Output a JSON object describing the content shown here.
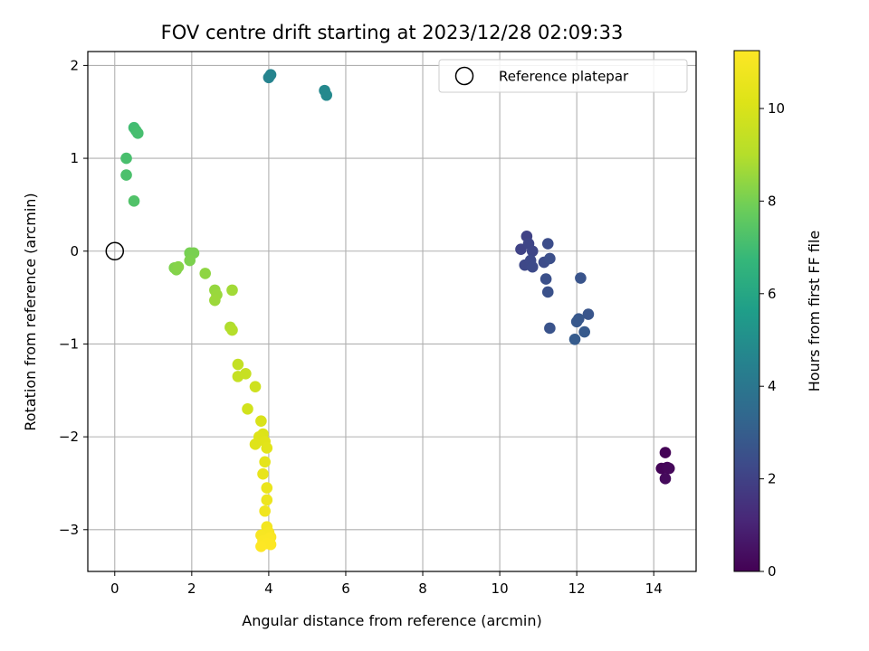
{
  "chart_data": {
    "type": "scatter",
    "title": "FOV centre drift starting at 2023/12/28 02:09:33",
    "xlabel": "Angular distance from reference (arcmin)",
    "ylabel": "Rotation from reference (arcmin)",
    "xlim": [
      -0.7,
      15.1
    ],
    "ylim": [
      -3.45,
      2.15
    ],
    "xticks": [
      "0",
      "2",
      "4",
      "6",
      "8",
      "10",
      "12",
      "14"
    ],
    "yticks": [
      "−3",
      "−2",
      "−1",
      "0",
      "1",
      "2"
    ],
    "grid": true,
    "legend": {
      "placement": "top-right",
      "entries": [
        "Reference platepar"
      ]
    },
    "reference_point": {
      "x": 0,
      "y": 0,
      "label": "Reference platepar"
    },
    "colorbar": {
      "label": "Hours from first FF file",
      "min": 0,
      "max": 11.25,
      "ticks": [
        "0",
        "2",
        "4",
        "6",
        "8",
        "10"
      ],
      "colormap": "viridis"
    },
    "points": [
      {
        "x": 14.3,
        "y": -2.17,
        "c": 0.05
      },
      {
        "x": 14.2,
        "y": -2.34,
        "c": 0.1
      },
      {
        "x": 14.35,
        "y": -2.33,
        "c": 0.15
      },
      {
        "x": 14.4,
        "y": -2.34,
        "c": 0.2
      },
      {
        "x": 14.3,
        "y": -2.45,
        "c": 0.25
      },
      {
        "x": 10.7,
        "y": 0.16,
        "c": 2.0
      },
      {
        "x": 10.55,
        "y": 0.02,
        "c": 2.05
      },
      {
        "x": 10.75,
        "y": 0.08,
        "c": 2.1
      },
      {
        "x": 10.85,
        "y": 0.0,
        "c": 2.15
      },
      {
        "x": 10.65,
        "y": -0.15,
        "c": 2.2
      },
      {
        "x": 10.8,
        "y": -0.1,
        "c": 2.25
      },
      {
        "x": 10.85,
        "y": -0.17,
        "c": 2.3
      },
      {
        "x": 11.15,
        "y": -0.12,
        "c": 2.35
      },
      {
        "x": 11.25,
        "y": 0.08,
        "c": 2.4
      },
      {
        "x": 11.3,
        "y": -0.08,
        "c": 2.45
      },
      {
        "x": 11.2,
        "y": -0.3,
        "c": 2.5
      },
      {
        "x": 11.25,
        "y": -0.44,
        "c": 2.55
      },
      {
        "x": 11.3,
        "y": -0.83,
        "c": 2.6
      },
      {
        "x": 12.1,
        "y": -0.29,
        "c": 2.65
      },
      {
        "x": 12.3,
        "y": -0.68,
        "c": 2.7
      },
      {
        "x": 12.05,
        "y": -0.73,
        "c": 2.75
      },
      {
        "x": 12.0,
        "y": -0.76,
        "c": 2.8
      },
      {
        "x": 12.2,
        "y": -0.87,
        "c": 2.85
      },
      {
        "x": 11.95,
        "y": -0.95,
        "c": 2.9
      },
      {
        "x": 4.0,
        "y": 1.87,
        "c": 4.55
      },
      {
        "x": 4.05,
        "y": 1.9,
        "c": 4.6
      },
      {
        "x": 5.45,
        "y": 1.73,
        "c": 4.75
      },
      {
        "x": 5.5,
        "y": 1.68,
        "c": 4.8
      },
      {
        "x": 0.5,
        "y": 1.33,
        "c": 7.0
      },
      {
        "x": 0.55,
        "y": 1.3,
        "c": 7.05
      },
      {
        "x": 0.6,
        "y": 1.27,
        "c": 7.1
      },
      {
        "x": 0.3,
        "y": 1.0,
        "c": 7.15
      },
      {
        "x": 0.3,
        "y": 0.82,
        "c": 7.2
      },
      {
        "x": 0.5,
        "y": 0.54,
        "c": 7.3
      },
      {
        "x": 1.95,
        "y": -0.02,
        "c": 8.0
      },
      {
        "x": 2.05,
        "y": -0.02,
        "c": 8.05
      },
      {
        "x": 1.95,
        "y": -0.1,
        "c": 8.1
      },
      {
        "x": 1.55,
        "y": -0.18,
        "c": 8.15
      },
      {
        "x": 1.6,
        "y": -0.2,
        "c": 8.2
      },
      {
        "x": 1.65,
        "y": -0.17,
        "c": 8.25
      },
      {
        "x": 2.35,
        "y": -0.24,
        "c": 8.4
      },
      {
        "x": 2.6,
        "y": -0.42,
        "c": 8.5
      },
      {
        "x": 2.65,
        "y": -0.47,
        "c": 8.55
      },
      {
        "x": 2.6,
        "y": -0.53,
        "c": 8.6
      },
      {
        "x": 3.05,
        "y": -0.42,
        "c": 8.7
      },
      {
        "x": 3.0,
        "y": -0.82,
        "c": 8.9
      },
      {
        "x": 3.05,
        "y": -0.85,
        "c": 9.0
      },
      {
        "x": 3.2,
        "y": -1.22,
        "c": 9.4
      },
      {
        "x": 3.2,
        "y": -1.35,
        "c": 9.45
      },
      {
        "x": 3.4,
        "y": -1.32,
        "c": 9.5
      },
      {
        "x": 3.65,
        "y": -1.46,
        "c": 9.7
      },
      {
        "x": 3.45,
        "y": -1.7,
        "c": 9.8
      },
      {
        "x": 3.8,
        "y": -1.83,
        "c": 10.0
      },
      {
        "x": 3.85,
        "y": -1.97,
        "c": 10.1
      },
      {
        "x": 3.75,
        "y": -2.0,
        "c": 10.15
      },
      {
        "x": 3.65,
        "y": -2.08,
        "c": 10.2
      },
      {
        "x": 3.9,
        "y": -2.05,
        "c": 10.25
      },
      {
        "x": 3.95,
        "y": -2.12,
        "c": 10.3
      },
      {
        "x": 3.9,
        "y": -2.27,
        "c": 10.4
      },
      {
        "x": 3.85,
        "y": -2.4,
        "c": 10.5
      },
      {
        "x": 3.95,
        "y": -2.55,
        "c": 10.6
      },
      {
        "x": 3.95,
        "y": -2.68,
        "c": 10.7
      },
      {
        "x": 3.9,
        "y": -2.8,
        "c": 10.8
      },
      {
        "x": 3.95,
        "y": -2.97,
        "c": 10.9
      },
      {
        "x": 4.0,
        "y": -3.03,
        "c": 11.0
      },
      {
        "x": 3.8,
        "y": -3.06,
        "c": 11.05
      },
      {
        "x": 4.05,
        "y": -3.08,
        "c": 11.1
      },
      {
        "x": 3.85,
        "y": -3.12,
        "c": 11.15
      },
      {
        "x": 4.0,
        "y": -3.1,
        "c": 11.15
      },
      {
        "x": 3.95,
        "y": -3.15,
        "c": 11.2
      },
      {
        "x": 4.05,
        "y": -3.16,
        "c": 11.2
      },
      {
        "x": 3.8,
        "y": -3.18,
        "c": 11.25
      }
    ]
  }
}
